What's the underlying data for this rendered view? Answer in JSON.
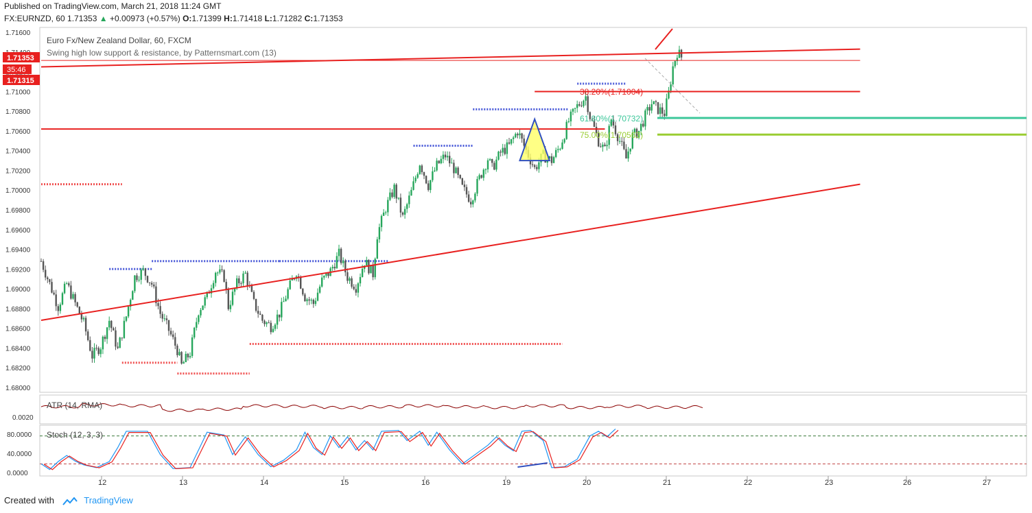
{
  "header": {
    "published": "Published on TradingView.com, March 21, 2018 11:24 GMT",
    "symbol": "FX:EURNZD, 60",
    "last": "1.71353",
    "change": "+0.00973 (+0.57%)",
    "o_label": "O:",
    "o": "1.71399",
    "h_label": "H:",
    "h": "1.71418",
    "l_label": "L:",
    "l": "1.71282",
    "c_label": "C:",
    "c": "1.71353"
  },
  "legend": {
    "title": "Euro Fx/New Zealand Dollar, 60, FXCM",
    "indicator": "Swing high low support & resistance, by Patternsmart.com (13)"
  },
  "price_tags": {
    "last": "1.71353",
    "countdown": "35:46",
    "level": "1.71315"
  },
  "fib_labels": {
    "f382": "38.20%(1.71004)",
    "f618": "61.80%(1.70732)",
    "f75": "75.00%(1.70563)"
  },
  "atr": {
    "label": "ATR (14, RMA)",
    "tick": "0.0020"
  },
  "stoch": {
    "label": "Stoch (12, 3, 3)",
    "ticks": [
      "80.0000",
      "40.0000",
      "0.0000"
    ]
  },
  "footer": {
    "created": "Created with",
    "brand": "TradingView"
  },
  "colors": {
    "up": "#26a65b",
    "down": "#555555",
    "trend": "#e8201f",
    "fib618": "#3cc79a",
    "fib75": "#9acd32",
    "swing_high": "#4a5ad8",
    "swing_low": "#f05050"
  },
  "chart_data": {
    "type": "candlestick",
    "title": "Euro Fx/New Zealand Dollar, 60, FXCM",
    "y_ticks": [
      "1.71600",
      "1.71400",
      "1.71200",
      "1.71000",
      "1.70800",
      "1.70600",
      "1.70400",
      "1.70200",
      "1.70000",
      "1.69800",
      "1.69600",
      "1.69400",
      "1.69200",
      "1.69000",
      "1.68800",
      "1.68600",
      "1.68400",
      "1.68200",
      "1.68000"
    ],
    "y_tick_values": [
      1.716,
      1.714,
      1.712,
      1.71,
      1.708,
      1.706,
      1.704,
      1.702,
      1.7,
      1.698,
      1.696,
      1.694,
      1.692,
      1.69,
      1.688,
      1.686,
      1.684,
      1.682,
      1.68
    ],
    "x_ticks": [
      "12",
      "13",
      "14",
      "15",
      "16",
      "19",
      "20",
      "21",
      "22",
      "23",
      "26",
      "27"
    ],
    "ylim": [
      1.6795,
      1.7165
    ],
    "path": [
      [
        0,
        1.6928
      ],
      [
        4,
        1.6905
      ],
      [
        8,
        1.6882
      ],
      [
        12,
        1.6905
      ],
      [
        16,
        1.6885
      ],
      [
        20,
        1.6865
      ],
      [
        24,
        1.6832
      ],
      [
        28,
        1.6842
      ],
      [
        32,
        1.6868
      ],
      [
        36,
        1.6838
      ],
      [
        40,
        1.6872
      ],
      [
        44,
        1.6912
      ],
      [
        48,
        1.6918
      ],
      [
        52,
        1.6905
      ],
      [
        56,
        1.6875
      ],
      [
        60,
        1.6858
      ],
      [
        64,
        1.6838
      ],
      [
        66,
        1.6822
      ],
      [
        70,
        1.6835
      ],
      [
        74,
        1.6878
      ],
      [
        78,
        1.6892
      ],
      [
        82,
        1.6918
      ],
      [
        86,
        1.6912
      ],
      [
        88,
        1.6882
      ],
      [
        92,
        1.6905
      ],
      [
        96,
        1.6915
      ],
      [
        100,
        1.6885
      ],
      [
        104,
        1.6868
      ],
      [
        108,
        1.6862
      ],
      [
        112,
        1.6875
      ],
      [
        116,
        1.6898
      ],
      [
        120,
        1.6918
      ],
      [
        124,
        1.6892
      ],
      [
        128,
        1.6885
      ],
      [
        132,
        1.6908
      ],
      [
        136,
        1.6918
      ],
      [
        140,
        1.6935
      ],
      [
        144,
        1.6912
      ],
      [
        148,
        1.6902
      ],
      [
        152,
        1.6928
      ],
      [
        156,
        1.6915
      ],
      [
        158,
        1.6955
      ],
      [
        162,
        1.6982
      ],
      [
        166,
        1.7002
      ],
      [
        170,
        1.6972
      ],
      [
        174,
        1.6998
      ],
      [
        178,
        1.7028
      ],
      [
        182,
        1.7005
      ],
      [
        186,
        1.7025
      ],
      [
        190,
        1.7035
      ],
      [
        194,
        1.7022
      ],
      [
        198,
        1.7002
      ],
      [
        202,
        1.699
      ],
      [
        206,
        1.7012
      ],
      [
        210,
        1.7032
      ],
      [
        212,
        1.7022
      ],
      [
        216,
        1.7038
      ],
      [
        220,
        1.7045
      ],
      [
        224,
        1.706
      ],
      [
        228,
        1.704
      ],
      [
        232,
        1.7022
      ],
      [
        236,
        1.7035
      ],
      [
        240,
        1.703
      ],
      [
        244,
        1.7045
      ],
      [
        248,
        1.707
      ],
      [
        252,
        1.7085
      ],
      [
        256,
        1.7095
      ],
      [
        258,
        1.7075
      ],
      [
        262,
        1.705
      ],
      [
        265,
        1.704
      ],
      [
        268,
        1.7072
      ],
      [
        272,
        1.705
      ],
      [
        275,
        1.7032
      ],
      [
        278,
        1.7055
      ],
      [
        281,
        1.706
      ],
      [
        284,
        1.7075
      ],
      [
        287,
        1.7088
      ],
      [
        290,
        1.7082
      ],
      [
        293,
        1.7078
      ],
      [
        295,
        1.7098
      ],
      [
        297,
        1.7125
      ],
      [
        299,
        1.714
      ],
      [
        301,
        1.7135
      ]
    ],
    "n_bars": 302,
    "ohlc_last": {
      "open": 1.71399,
      "high": 1.71418,
      "low": 1.71282,
      "close": 1.71353
    },
    "fib_levels": [
      1.71004,
      1.70732,
      1.70563
    ],
    "swing_high_levels": [
      {
        "from": 32,
        "to": 52,
        "level": 1.692
      },
      {
        "from": 52,
        "to": 112,
        "level": 1.6928
      },
      {
        "from": 112,
        "to": 163,
        "level": 1.6928
      },
      {
        "from": 175,
        "to": 203,
        "level": 1.7045
      },
      {
        "from": 203,
        "to": 248,
        "level": 1.7082
      },
      {
        "from": 252,
        "to": 275,
        "level": 1.7108
      }
    ],
    "swing_low_levels": [
      {
        "from": 0,
        "to": 38,
        "level": 1.7006
      },
      {
        "from": 38,
        "to": 64,
        "level": 1.6825
      },
      {
        "from": 64,
        "to": 98,
        "level": 1.6814
      },
      {
        "from": 98,
        "to": 232,
        "level": 1.6844
      },
      {
        "from": 232,
        "to": 245,
        "level": 1.6844
      }
    ],
    "trendlines": [
      {
        "x1": 0,
        "y1": 1.6868,
        "x2": 385,
        "y2": 1.7006
      },
      {
        "x1": 0,
        "y1": 1.7062,
        "x2": 265,
        "y2": 1.7062
      },
      {
        "x1": 0,
        "y1": 1.7125,
        "x2": 385,
        "y2": 1.7143
      },
      {
        "x1": 0,
        "y1": 1.71315,
        "x2": 385,
        "y2": 1.71315
      },
      {
        "x1": 232,
        "y1": 1.71,
        "x2": 385,
        "y2": 1.71
      }
    ],
    "triangle": [
      [
        225,
        1.703
      ],
      [
        232,
        1.7072
      ],
      [
        239,
        1.703
      ]
    ],
    "atr_path": [
      [
        0,
        0.58
      ],
      [
        20,
        0.66
      ],
      [
        40,
        0.62
      ],
      [
        60,
        0.44
      ],
      [
        70,
        0.48
      ],
      [
        80,
        0.62
      ],
      [
        100,
        0.6
      ],
      [
        120,
        0.55
      ],
      [
        140,
        0.58
      ],
      [
        160,
        0.62
      ],
      [
        180,
        0.58
      ],
      [
        200,
        0.55
      ],
      [
        220,
        0.62
      ],
      [
        240,
        0.55
      ],
      [
        260,
        0.6
      ],
      [
        280,
        0.56
      ],
      [
        300,
        0.58
      ]
    ],
    "atr_tick_value": 0.002,
    "stoch_levels": [
      80,
      20
    ],
    "stoch_k": [
      [
        0,
        20
      ],
      [
        4,
        8
      ],
      [
        8,
        25
      ],
      [
        12,
        38
      ],
      [
        16,
        26
      ],
      [
        20,
        18
      ],
      [
        26,
        12
      ],
      [
        32,
        25
      ],
      [
        36,
        55
      ],
      [
        40,
        90
      ],
      [
        50,
        90
      ],
      [
        56,
        40
      ],
      [
        62,
        10
      ],
      [
        70,
        12
      ],
      [
        74,
        50
      ],
      [
        78,
        88
      ],
      [
        86,
        82
      ],
      [
        90,
        40
      ],
      [
        96,
        78
      ],
      [
        102,
        40
      ],
      [
        108,
        14
      ],
      [
        114,
        28
      ],
      [
        120,
        50
      ],
      [
        124,
        88
      ],
      [
        128,
        55
      ],
      [
        132,
        40
      ],
      [
        136,
        80
      ],
      [
        140,
        55
      ],
      [
        144,
        78
      ],
      [
        148,
        50
      ],
      [
        152,
        70
      ],
      [
        156,
        50
      ],
      [
        160,
        90
      ],
      [
        168,
        92
      ],
      [
        172,
        70
      ],
      [
        178,
        90
      ],
      [
        182,
        60
      ],
      [
        186,
        88
      ],
      [
        192,
        50
      ],
      [
        198,
        20
      ],
      [
        204,
        40
      ],
      [
        210,
        60
      ],
      [
        214,
        78
      ],
      [
        218,
        60
      ],
      [
        222,
        48
      ],
      [
        226,
        90
      ],
      [
        230,
        92
      ],
      [
        236,
        70
      ],
      [
        240,
        12
      ],
      [
        246,
        14
      ],
      [
        252,
        30
      ],
      [
        258,
        80
      ],
      [
        262,
        90
      ],
      [
        266,
        78
      ],
      [
        270,
        95
      ]
    ],
    "stoch_divergence": [
      [
        224,
        22
      ],
      [
        238,
        28
      ]
    ]
  }
}
